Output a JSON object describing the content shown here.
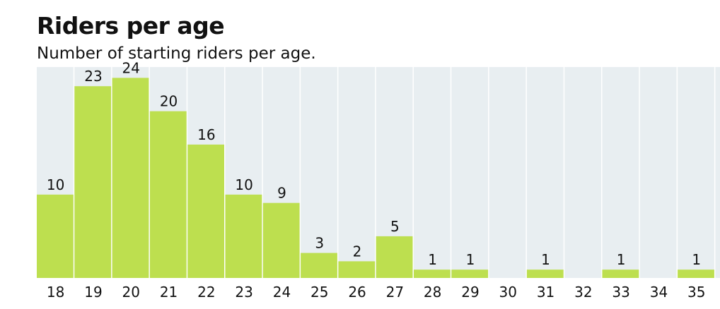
{
  "chart_data": {
    "type": "bar",
    "title": "Riders per age",
    "subtitle": "Number of starting riders per age.",
    "categories": [
      "18",
      "19",
      "20",
      "21",
      "22",
      "23",
      "24",
      "25",
      "26",
      "27",
      "28",
      "29",
      "30",
      "31",
      "32",
      "33",
      "34",
      "35"
    ],
    "values": [
      10,
      23,
      24,
      20,
      16,
      10,
      9,
      3,
      2,
      5,
      1,
      1,
      0,
      1,
      0,
      1,
      0,
      1
    ],
    "ylim": [
      0,
      25.3
    ],
    "grid": false,
    "colors": {
      "bar": "#bddf4f",
      "column_background": "#e8eef1",
      "column_separator": "#ffffff"
    }
  }
}
